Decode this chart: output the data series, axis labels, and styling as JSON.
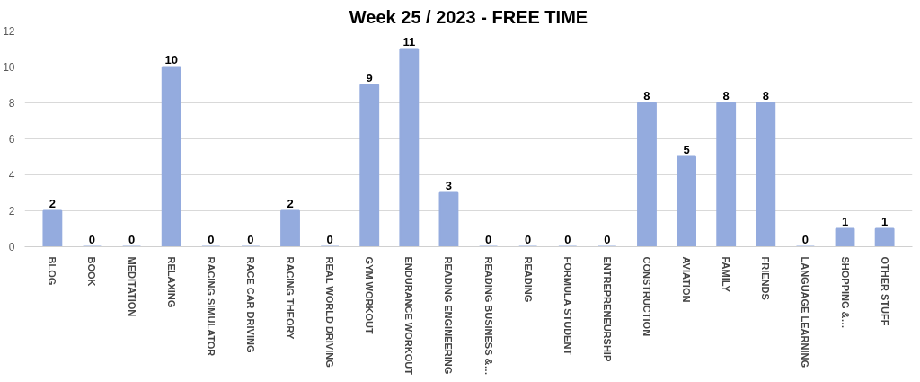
{
  "chart_data": {
    "type": "bar",
    "title": "Week 25 / 2023 - FREE TIME",
    "categories": [
      "BLOG",
      "BOOK",
      "MEDITATION",
      "RELAXING",
      "RACING SIMULATOR",
      "RACE CAR DRIVING",
      "RACING THEORY",
      "REAL WORLD DRIVING",
      "GYM WORKOUT",
      "ENDURANCE WORKOUT",
      "READING ENGINEERING",
      "READING BUSINESS &…",
      "READING",
      "FORMULA STUDENT",
      "ENTREPRENEURSHIP",
      "CONSTRUCTION",
      "AVIATION",
      "FAMILY",
      "FRIENDS",
      "LANGUAGE LEARNING",
      "SHOPPING &…",
      "OTHER STUFF"
    ],
    "values": [
      2,
      0,
      0,
      10,
      0,
      0,
      2,
      0,
      9,
      11,
      3,
      0,
      0,
      0,
      0,
      8,
      5,
      8,
      8,
      0,
      1,
      1
    ],
    "color": "#94abde",
    "ylim": [
      0,
      12
    ],
    "yticks": [
      0,
      2,
      4,
      6,
      8,
      10,
      12
    ],
    "grid": "y",
    "data_labels": true
  }
}
